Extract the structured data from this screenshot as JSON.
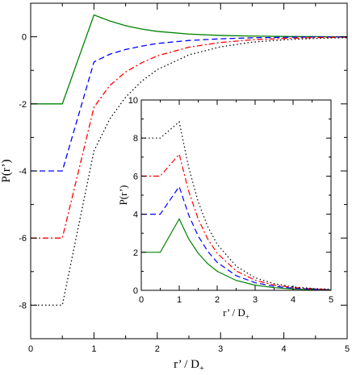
{
  "chart_data": [
    {
      "type": "line",
      "panel": "main",
      "title": "",
      "xlabel": "r’ / D",
      "xlabel_sub": "+",
      "ylabel": "P(r’)",
      "xlim": [
        0,
        5
      ],
      "ylim": [
        -9,
        1
      ],
      "xticks": [
        0,
        1,
        2,
        3,
        4,
        5
      ],
      "yticks": [
        -8,
        -6,
        -4,
        -2,
        0
      ],
      "grid": false,
      "series": [
        {
          "color": "#008000",
          "dash": "solid",
          "x": [
            0.0,
            0.5,
            1.0,
            1.25,
            1.5,
            1.75,
            2.0,
            2.5,
            3.0,
            3.5,
            4.0,
            4.5,
            5.0
          ],
          "values": [
            -2,
            -2,
            0.65,
            0.47,
            0.33,
            0.23,
            0.16,
            0.08,
            0.04,
            0.02,
            0.01,
            0.005,
            0.0
          ]
        },
        {
          "color": "#0000ff",
          "dash": "dashed",
          "x": [
            0.0,
            0.5,
            1.0,
            1.25,
            1.5,
            1.75,
            2.0,
            2.5,
            3.0,
            3.5,
            4.0,
            4.5,
            5.0
          ],
          "values": [
            -4,
            -4,
            -0.75,
            -0.52,
            -0.38,
            -0.28,
            -0.2,
            -0.11,
            -0.06,
            -0.03,
            -0.015,
            -0.008,
            -0.004
          ]
        },
        {
          "color": "#ff0000",
          "dash": "dashdot",
          "x": [
            0.0,
            0.5,
            1.0,
            1.25,
            1.5,
            1.75,
            2.0,
            2.5,
            3.0,
            3.5,
            4.0,
            4.5,
            5.0
          ],
          "values": [
            -6,
            -6,
            -2.1,
            -1.45,
            -1.05,
            -0.78,
            -0.57,
            -0.31,
            -0.17,
            -0.09,
            -0.05,
            -0.025,
            -0.012
          ]
        },
        {
          "color": "#000000",
          "dash": "dotted",
          "x": [
            0.0,
            0.5,
            1.0,
            1.25,
            1.5,
            1.75,
            2.0,
            2.5,
            3.0,
            3.5,
            4.0,
            4.5,
            5.0
          ],
          "values": [
            -8,
            -8,
            -3.4,
            -2.45,
            -1.8,
            -1.33,
            -0.98,
            -0.54,
            -0.3,
            -0.16,
            -0.09,
            -0.05,
            -0.025
          ]
        }
      ]
    },
    {
      "type": "line",
      "panel": "inset",
      "title": "",
      "xlabel": "r’ / D",
      "xlabel_sub": "+",
      "ylabel": "P(r’)",
      "xlim": [
        0,
        5
      ],
      "ylim": [
        0,
        10
      ],
      "xticks": [
        0,
        1,
        2,
        3,
        4,
        5
      ],
      "yticks": [
        0,
        2,
        4,
        6,
        8,
        10
      ],
      "grid": false,
      "series": [
        {
          "color": "#008000",
          "dash": "solid",
          "x": [
            0.0,
            0.5,
            1.0,
            1.25,
            1.5,
            1.75,
            2.0,
            2.5,
            3.0,
            3.5,
            4.0,
            4.5,
            5.0
          ],
          "values": [
            2,
            2,
            3.75,
            2.7,
            1.95,
            1.4,
            1.0,
            0.52,
            0.27,
            0.14,
            0.07,
            0.04,
            0.02
          ]
        },
        {
          "color": "#0000ff",
          "dash": "dashed",
          "x": [
            0.0,
            0.5,
            1.0,
            1.25,
            1.5,
            1.75,
            2.0,
            2.5,
            3.0,
            3.5,
            4.0,
            4.5,
            5.0
          ],
          "values": [
            4,
            4,
            5.45,
            3.95,
            2.85,
            2.05,
            1.47,
            0.77,
            0.4,
            0.21,
            0.11,
            0.06,
            0.03
          ]
        },
        {
          "color": "#ff0000",
          "dash": "dashdot",
          "x": [
            0.0,
            0.5,
            1.0,
            1.25,
            1.5,
            1.75,
            2.0,
            2.5,
            3.0,
            3.5,
            4.0,
            4.5,
            5.0
          ],
          "values": [
            6,
            6,
            7.15,
            5.2,
            3.75,
            2.7,
            1.95,
            1.02,
            0.53,
            0.28,
            0.15,
            0.08,
            0.04
          ]
        },
        {
          "color": "#000000",
          "dash": "dotted",
          "x": [
            0.0,
            0.5,
            1.0,
            1.25,
            1.5,
            1.75,
            2.0,
            2.5,
            3.0,
            3.5,
            4.0,
            4.5,
            5.0
          ],
          "values": [
            8,
            8,
            8.85,
            6.45,
            4.65,
            3.35,
            2.42,
            1.27,
            0.66,
            0.35,
            0.18,
            0.1,
            0.05
          ]
        }
      ]
    }
  ]
}
